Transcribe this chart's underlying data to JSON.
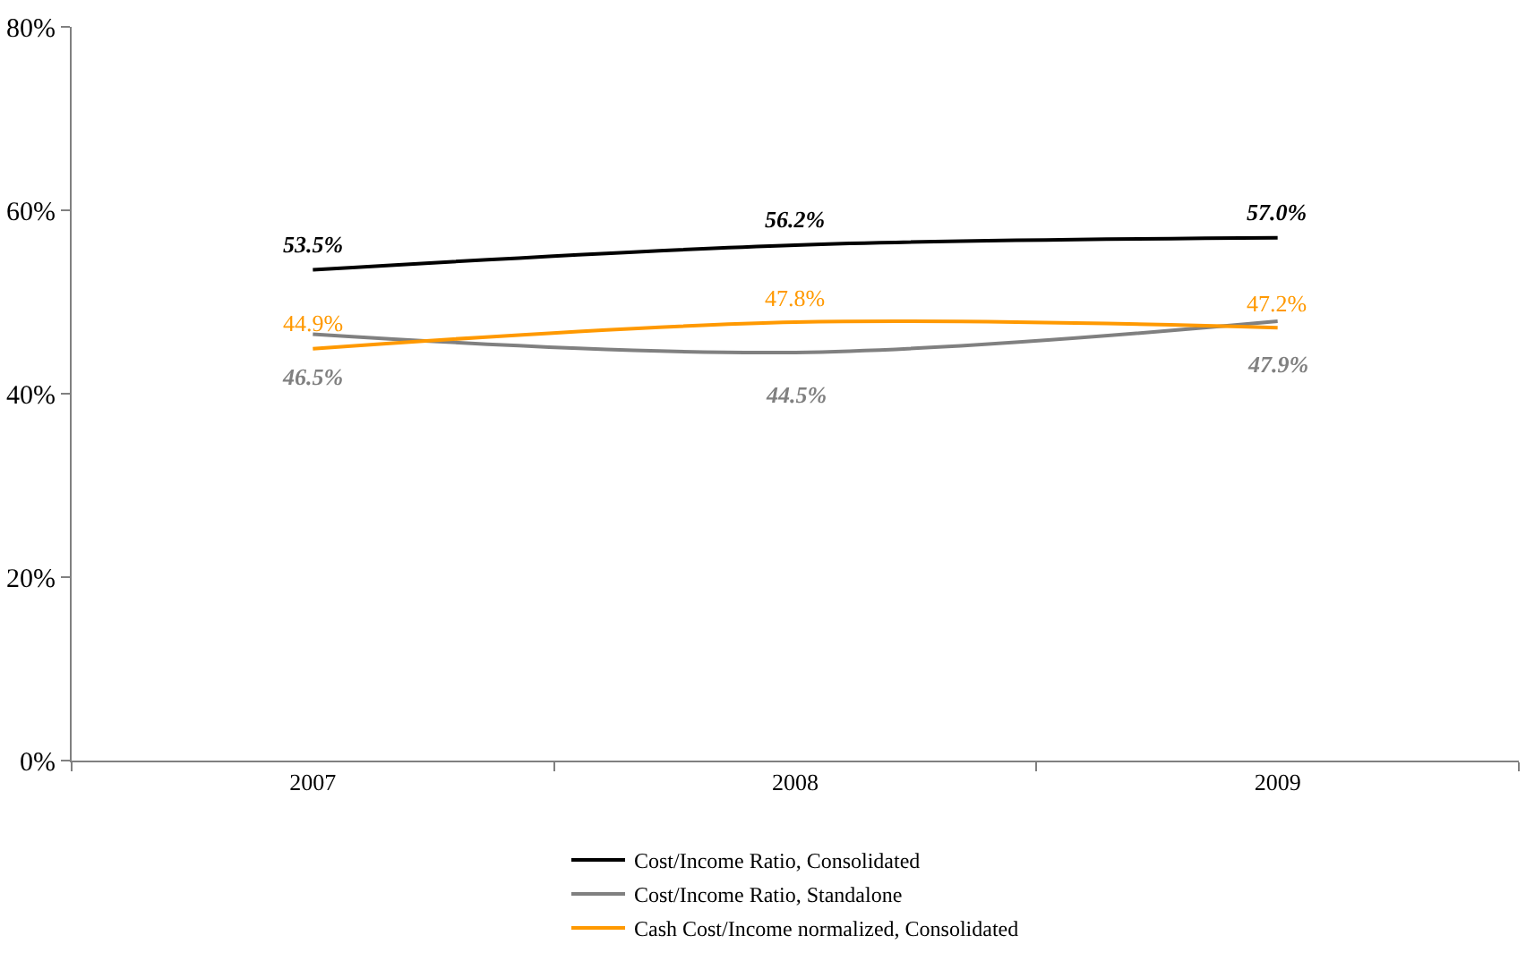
{
  "chart_data": {
    "type": "line",
    "categories": [
      "2007",
      "2008",
      "2009"
    ],
    "series": [
      {
        "name": "Cost/Income Ratio, Consolidated",
        "color": "#000000",
        "values": [
          53.5,
          56.2,
          57.0
        ],
        "value_labels": [
          "53.5%",
          "56.2%",
          "57.0%"
        ]
      },
      {
        "name": "Cost/Income Ratio, Standalone",
        "color": "#808080",
        "values": [
          46.5,
          44.5,
          47.9
        ],
        "value_labels": [
          "46.5%",
          "44.5%",
          "47.9%"
        ]
      },
      {
        "name": "Cash Cost/Income normalized, Consolidated",
        "color": "#ff9900",
        "values": [
          44.9,
          47.8,
          47.2
        ],
        "value_labels": [
          "44.9%",
          "47.8%",
          "47.2%"
        ]
      }
    ],
    "ylim": [
      0,
      80
    ],
    "yticks": [
      {
        "value": 0,
        "label": "0%"
      },
      {
        "value": 20,
        "label": "20%"
      },
      {
        "value": 40,
        "label": "40%"
      },
      {
        "value": 60,
        "label": "60%"
      },
      {
        "value": 80,
        "label": "80%"
      }
    ],
    "legend": "bottom",
    "marker": "none",
    "line_style": "solid"
  }
}
